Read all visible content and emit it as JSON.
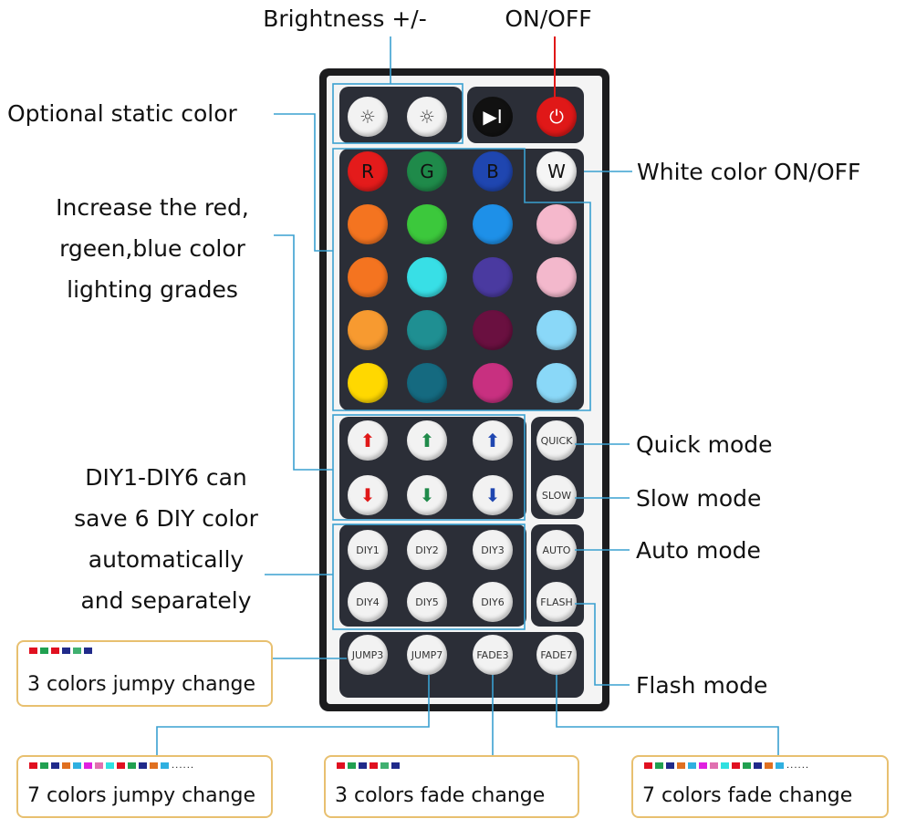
{
  "labels": {
    "brightness": "Brightness +/-",
    "onoff": "ON/OFF",
    "static_color": "Optional static color",
    "white": "White color ON/OFF",
    "increase": [
      "Increase the red,",
      "rgeen,blue color",
      "lighting grades"
    ],
    "diy": [
      "DIY1-DIY6 can",
      "save 6 DIY color",
      "automatically",
      "and separately"
    ],
    "quick": "Quick mode",
    "slow": "Slow mode",
    "auto": "Auto mode",
    "flash": "Flash mode"
  },
  "boxes": [
    {
      "text": "3 colors jumpy change",
      "swatches": [
        "#e01020",
        "#20a050",
        "#e01020",
        "#202a8a",
        "#40b070",
        "#202a8a"
      ],
      "more": ""
    },
    {
      "text": "7 colors jumpy change",
      "swatches": [
        "#e01020",
        "#20a050",
        "#202a8a",
        "#e07020",
        "#30b0e0",
        "#e020e0",
        "#e070b0",
        "#30e0e0",
        "#e01020",
        "#20a050",
        "#202a8a",
        "#e07020",
        "#30b0e0"
      ],
      "more": "......"
    },
    {
      "text": "3 colors fade change",
      "swatches": [
        "#e01020",
        "#20a050",
        "#202a8a",
        "#e01020",
        "#40b070",
        "#202a8a"
      ],
      "more": ""
    },
    {
      "text": "7 colors fade change",
      "swatches": [
        "#e01020",
        "#20a050",
        "#202a8a",
        "#e07020",
        "#30b0e0",
        "#e020e0",
        "#e070b0",
        "#30e0e0",
        "#e01020",
        "#20a050",
        "#202a8a",
        "#e07020",
        "#30b0e0"
      ],
      "more": "......"
    }
  ],
  "remote": {
    "buttons": [
      {
        "id": "brightness-up",
        "label": "☼",
        "color": "#f2f2f2",
        "text": "#555"
      },
      {
        "id": "brightness-down",
        "label": "☼",
        "color": "#f2f2f2",
        "text": "#555"
      },
      {
        "id": "play-pause",
        "label": "▶I",
        "color": "#111111",
        "text": "#fff"
      },
      {
        "id": "power",
        "label": "⏻",
        "color": "#e01818",
        "text": "#fff"
      },
      {
        "id": "red",
        "label": "R",
        "color": "#e41b1b",
        "text": "#111"
      },
      {
        "id": "green",
        "label": "G",
        "color": "#1f8a4a",
        "text": "#111"
      },
      {
        "id": "blue",
        "label": "B",
        "color": "#1f46b0",
        "text": "#111"
      },
      {
        "id": "white",
        "label": "W",
        "color": "#f5f5f5",
        "text": "#111"
      },
      {
        "id": "c1",
        "label": "",
        "color": "#f47420"
      },
      {
        "id": "c2",
        "label": "",
        "color": "#3cc83c"
      },
      {
        "id": "c3",
        "label": "",
        "color": "#1e90e8"
      },
      {
        "id": "c4",
        "label": "",
        "color": "#f5b8cc"
      },
      {
        "id": "c5",
        "label": "",
        "color": "#f47420"
      },
      {
        "id": "c6",
        "label": "",
        "color": "#38dfe6"
      },
      {
        "id": "c7",
        "label": "",
        "color": "#4a3aa0"
      },
      {
        "id": "c8",
        "label": "",
        "color": "#f3b8cc"
      },
      {
        "id": "c9",
        "label": "",
        "color": "#f79a30"
      },
      {
        "id": "c10",
        "label": "",
        "color": "#1f8f92"
      },
      {
        "id": "c11",
        "label": "",
        "color": "#6a1040"
      },
      {
        "id": "c12",
        "label": "",
        "color": "#8ad8f8"
      },
      {
        "id": "c13",
        "label": "",
        "color": "#ffd800"
      },
      {
        "id": "c14",
        "label": "",
        "color": "#156a80"
      },
      {
        "id": "c15",
        "label": "",
        "color": "#c83080"
      },
      {
        "id": "c16",
        "label": "",
        "color": "#8ad8f8"
      },
      {
        "id": "red-up",
        "label": "⬆",
        "color": "#f2f2f2",
        "text": "#e01818"
      },
      {
        "id": "green-up",
        "label": "⬆",
        "color": "#f2f2f2",
        "text": "#1f8a4a"
      },
      {
        "id": "blue-up",
        "label": "⬆",
        "color": "#f2f2f2",
        "text": "#1f46b0"
      },
      {
        "id": "quick",
        "label": "QUICK",
        "color": "#f2f2f2",
        "text": "#333"
      },
      {
        "id": "red-down",
        "label": "⬇",
        "color": "#f2f2f2",
        "text": "#e01818"
      },
      {
        "id": "green-down",
        "label": "⬇",
        "color": "#f2f2f2",
        "text": "#1f8a4a"
      },
      {
        "id": "blue-down",
        "label": "⬇",
        "color": "#f2f2f2",
        "text": "#1f46b0"
      },
      {
        "id": "slow",
        "label": "SLOW",
        "color": "#f2f2f2",
        "text": "#333"
      },
      {
        "id": "diy1",
        "label": "DIY1",
        "color": "#f2f2f2",
        "text": "#333"
      },
      {
        "id": "diy2",
        "label": "DIY2",
        "color": "#f2f2f2",
        "text": "#333"
      },
      {
        "id": "diy3",
        "label": "DIY3",
        "color": "#f2f2f2",
        "text": "#333"
      },
      {
        "id": "auto",
        "label": "AUTO",
        "color": "#f2f2f2",
        "text": "#333"
      },
      {
        "id": "diy4",
        "label": "DIY4",
        "color": "#f2f2f2",
        "text": "#333"
      },
      {
        "id": "diy5",
        "label": "DIY5",
        "color": "#f2f2f2",
        "text": "#333"
      },
      {
        "id": "diy6",
        "label": "DIY6",
        "color": "#f2f2f2",
        "text": "#333"
      },
      {
        "id": "flash",
        "label": "FLASH",
        "color": "#f2f2f2",
        "text": "#333"
      },
      {
        "id": "jump3",
        "label": "JUMP3",
        "color": "#f2f2f2",
        "text": "#333"
      },
      {
        "id": "jump7",
        "label": "JUMP7",
        "color": "#f2f2f2",
        "text": "#333"
      },
      {
        "id": "fade3",
        "label": "FADE3",
        "color": "#f2f2f2",
        "text": "#333"
      },
      {
        "id": "fade7",
        "label": "FADE7",
        "color": "#f2f2f2",
        "text": "#333"
      }
    ]
  },
  "colors": {
    "callout_line": "#3aa0d0",
    "box_border": "#e8c070"
  }
}
